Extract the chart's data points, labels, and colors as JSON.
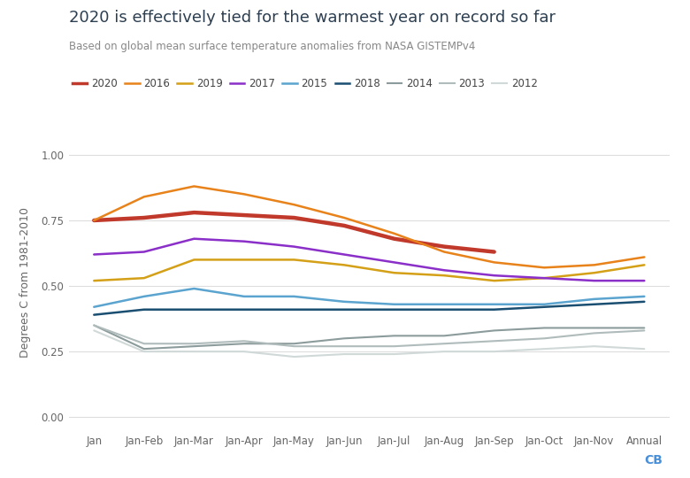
{
  "title": "2020 is effectively tied for the warmest year on record so far",
  "subtitle": "Based on global mean surface temperature anomalies from NASA GISTEMPv4",
  "ylabel": "Degrees C from 1981-2010",
  "x_labels": [
    "Jan",
    "Jan-Feb",
    "Jan-Mar",
    "Jan-Apr",
    "Jan-May",
    "Jan-Jun",
    "Jan-Jul",
    "Jan-Aug",
    "Jan-Sep",
    "Jan-Oct",
    "Jan-Nov",
    "Annual"
  ],
  "ylim": [
    -0.05,
    1.08
  ],
  "yticks": [
    0.0,
    0.25,
    0.5,
    0.75,
    1.0
  ],
  "series": {
    "2020": {
      "color": "#C0392B",
      "linewidth": 3.2,
      "values": [
        0.75,
        0.76,
        0.78,
        0.77,
        0.76,
        0.73,
        0.68,
        0.65,
        0.63,
        null,
        null,
        null
      ]
    },
    "2016": {
      "color": "#E8821A",
      "linewidth": 1.8,
      "values": [
        0.75,
        0.84,
        0.88,
        0.85,
        0.81,
        0.76,
        0.7,
        0.63,
        0.59,
        0.57,
        0.58,
        0.61
      ]
    },
    "2019": {
      "color": "#D4A017",
      "linewidth": 1.8,
      "values": [
        0.52,
        0.53,
        0.6,
        0.6,
        0.6,
        0.58,
        0.55,
        0.54,
        0.52,
        0.53,
        0.55,
        0.58
      ]
    },
    "2017": {
      "color": "#8B2FC9",
      "linewidth": 1.8,
      "values": [
        0.62,
        0.63,
        0.68,
        0.67,
        0.65,
        0.62,
        0.59,
        0.56,
        0.54,
        0.53,
        0.52,
        0.52
      ]
    },
    "2015": {
      "color": "#5BA4CF",
      "linewidth": 1.8,
      "values": [
        0.42,
        0.46,
        0.49,
        0.46,
        0.46,
        0.44,
        0.43,
        0.43,
        0.43,
        0.43,
        0.45,
        0.46
      ]
    },
    "2018": {
      "color": "#1B4F72",
      "linewidth": 1.8,
      "values": [
        0.39,
        0.41,
        0.41,
        0.41,
        0.41,
        0.41,
        0.41,
        0.41,
        0.41,
        0.42,
        0.43,
        0.44
      ]
    },
    "2014": {
      "color": "#8C9B9B",
      "linewidth": 1.5,
      "values": [
        0.35,
        0.26,
        0.27,
        0.28,
        0.28,
        0.3,
        0.31,
        0.31,
        0.33,
        0.34,
        0.34,
        0.34
      ]
    },
    "2013": {
      "color": "#B0BBBB",
      "linewidth": 1.5,
      "values": [
        0.35,
        0.28,
        0.28,
        0.29,
        0.27,
        0.27,
        0.27,
        0.28,
        0.29,
        0.3,
        0.32,
        0.33
      ]
    },
    "2012": {
      "color": "#D0D8D8",
      "linewidth": 1.5,
      "values": [
        0.33,
        0.25,
        0.25,
        0.25,
        0.23,
        0.24,
        0.24,
        0.25,
        0.25,
        0.26,
        0.27,
        0.26
      ]
    }
  },
  "legend_order": [
    "2020",
    "2016",
    "2019",
    "2017",
    "2015",
    "2018",
    "2014",
    "2013",
    "2012"
  ],
  "background_color": "#FFFFFF",
  "grid_color": "#DDDDDD"
}
